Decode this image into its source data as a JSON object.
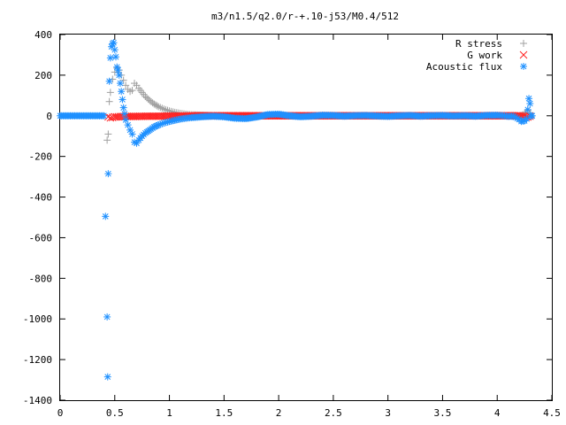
{
  "chart_data": {
    "type": "scatter",
    "title": "m3/n1.5/q2.0/r-+.10-j53/M0.4/512",
    "xlim": [
      0,
      4.5
    ],
    "ylim": [
      -1400,
      400
    ],
    "x_ticks": [
      "0",
      "0.5",
      "1",
      "1.5",
      "2",
      "2.5",
      "3",
      "3.5",
      "4",
      "4.5"
    ],
    "y_ticks": [
      "400",
      "200",
      "0",
      "-200",
      "-400",
      "-600",
      "-800",
      "-1000",
      "-1200",
      "-1400"
    ],
    "grid": false,
    "legend_position": "top-right",
    "series": [
      {
        "name": "R stress",
        "marker": "+",
        "color": "#a0a0a0",
        "points": [
          [
            0.43,
            -120
          ],
          [
            0.44,
            -90
          ],
          [
            0.45,
            70
          ],
          [
            0.46,
            115
          ],
          [
            0.48,
            180
          ],
          [
            0.5,
            215
          ],
          [
            0.52,
            235
          ],
          [
            0.54,
            225
          ],
          [
            0.56,
            200
          ],
          [
            0.58,
            175
          ],
          [
            0.6,
            150
          ],
          [
            0.62,
            130
          ],
          [
            0.64,
            120
          ],
          [
            0.66,
            125
          ],
          [
            0.68,
            160
          ],
          [
            0.7,
            150
          ],
          [
            0.72,
            135
          ],
          [
            0.75,
            115
          ],
          [
            0.78,
            95
          ],
          [
            0.82,
            75
          ],
          [
            0.86,
            58
          ],
          [
            0.9,
            45
          ],
          [
            0.95,
            33
          ],
          [
            1.0,
            24
          ],
          [
            1.05,
            17
          ],
          [
            1.1,
            12
          ],
          [
            1.15,
            8
          ],
          [
            1.2,
            5
          ],
          [
            1.3,
            3
          ],
          [
            1.4,
            1
          ],
          [
            1.6,
            0
          ],
          [
            2.0,
            0
          ],
          [
            2.5,
            0
          ],
          [
            3.0,
            0
          ],
          [
            3.5,
            0
          ],
          [
            4.0,
            0
          ],
          [
            4.2,
            0
          ],
          [
            4.25,
            8
          ],
          [
            4.28,
            25
          ],
          [
            4.3,
            15
          ],
          [
            4.31,
            -5
          ]
        ]
      },
      {
        "name": "G work",
        "marker": "x",
        "color": "#ff2020",
        "points": [
          [
            0.44,
            -5
          ],
          [
            0.46,
            -10
          ],
          [
            0.48,
            -8
          ],
          [
            0.5,
            -6
          ],
          [
            0.55,
            -4
          ],
          [
            0.6,
            -3
          ],
          [
            0.7,
            -3
          ],
          [
            0.8,
            -2
          ],
          [
            0.9,
            -2
          ],
          [
            1.0,
            -1
          ],
          [
            1.1,
            -1
          ],
          [
            1.2,
            0
          ],
          [
            1.4,
            0
          ],
          [
            1.6,
            0
          ],
          [
            1.8,
            0
          ],
          [
            2.0,
            0
          ],
          [
            2.5,
            0
          ],
          [
            3.0,
            0
          ],
          [
            3.5,
            0
          ],
          [
            4.0,
            0
          ],
          [
            4.2,
            0
          ],
          [
            4.25,
            -3
          ],
          [
            4.28,
            -6
          ],
          [
            4.3,
            -2
          ]
        ]
      },
      {
        "name": "Acoustic flux",
        "marker": "*",
        "color": "#1e90ff",
        "points": [
          [
            0.0,
            0
          ],
          [
            0.2,
            0
          ],
          [
            0.4,
            0
          ],
          [
            0.43,
            -990
          ],
          [
            0.435,
            -1285
          ],
          [
            0.44,
            -285
          ],
          [
            0.45,
            170
          ],
          [
            0.46,
            285
          ],
          [
            0.47,
            340
          ],
          [
            0.48,
            355
          ],
          [
            0.49,
            360
          ],
          [
            0.5,
            325
          ],
          [
            0.51,
            290
          ],
          [
            0.52,
            240
          ],
          [
            0.53,
            225
          ],
          [
            0.54,
            200
          ],
          [
            0.55,
            160
          ],
          [
            0.56,
            120
          ],
          [
            0.57,
            80
          ],
          [
            0.58,
            40
          ],
          [
            0.59,
            10
          ],
          [
            0.6,
            -20
          ],
          [
            0.62,
            -45
          ],
          [
            0.64,
            -70
          ],
          [
            0.66,
            -90
          ],
          [
            0.68,
            -130
          ],
          [
            0.7,
            -135
          ],
          [
            0.72,
            -120
          ],
          [
            0.75,
            -100
          ],
          [
            0.78,
            -85
          ],
          [
            0.82,
            -70
          ],
          [
            0.86,
            -55
          ],
          [
            0.9,
            -45
          ],
          [
            0.95,
            -35
          ],
          [
            1.0,
            -28
          ],
          [
            1.05,
            -22
          ],
          [
            1.1,
            -16
          ],
          [
            1.15,
            -12
          ],
          [
            1.2,
            -9
          ],
          [
            1.3,
            -5
          ],
          [
            1.4,
            -2
          ],
          [
            1.5,
            -5
          ],
          [
            1.6,
            -12
          ],
          [
            1.7,
            -14
          ],
          [
            1.8,
            -6
          ],
          [
            1.9,
            6
          ],
          [
            2.0,
            8
          ],
          [
            2.1,
            0
          ],
          [
            2.2,
            -5
          ],
          [
            2.3,
            -2
          ],
          [
            2.4,
            3
          ],
          [
            2.5,
            2
          ],
          [
            2.6,
            -2
          ],
          [
            2.7,
            1
          ],
          [
            2.8,
            2
          ],
          [
            2.9,
            -1
          ],
          [
            3.0,
            -3
          ],
          [
            3.1,
            0
          ],
          [
            3.2,
            2
          ],
          [
            3.3,
            -2
          ],
          [
            3.4,
            1
          ],
          [
            3.5,
            2
          ],
          [
            3.6,
            -1
          ],
          [
            3.7,
            1
          ],
          [
            3.8,
            -2
          ],
          [
            3.9,
            2
          ],
          [
            4.0,
            3
          ],
          [
            4.05,
            1
          ],
          [
            4.1,
            -3
          ],
          [
            4.15,
            -2
          ],
          [
            4.2,
            -18
          ],
          [
            4.22,
            -28
          ],
          [
            4.25,
            -25
          ],
          [
            4.27,
            -15
          ],
          [
            4.28,
            30
          ],
          [
            4.29,
            85
          ],
          [
            4.3,
            60
          ],
          [
            4.31,
            0
          ],
          [
            4.32,
            0
          ]
        ]
      }
    ]
  }
}
